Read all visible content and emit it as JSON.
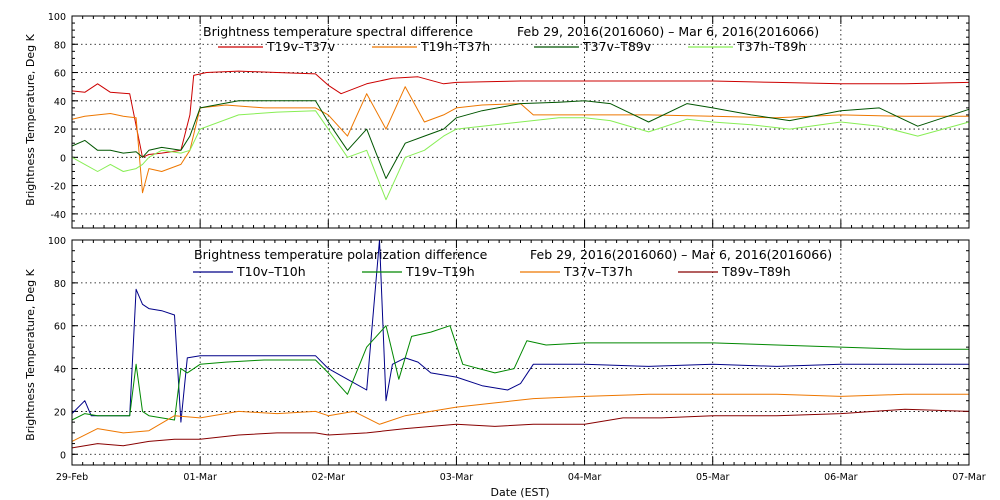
{
  "xlabel": "Date (EST)",
  "x_ticks": [
    "29-Feb",
    "01-Mar",
    "02-Mar",
    "03-Mar",
    "04-Mar",
    "05-Mar",
    "06-Mar",
    "07-Mar"
  ],
  "chart_data": [
    {
      "type": "line",
      "title_left": "Brightness temperature spectral difference",
      "title_right": "Feb 29, 2016(2016060) – Mar  6, 2016(2016066)",
      "ylabel": "Brightness Temperature, Deg K",
      "xlim": [
        0,
        7
      ],
      "ylim": [
        -50,
        100
      ],
      "yticks": [
        -40,
        -20,
        0,
        20,
        40,
        60,
        80,
        100
      ],
      "grid": true,
      "legend_position": "top",
      "series": [
        {
          "name": "T19v–T37v",
          "color": "#cc0000",
          "x": [
            0,
            0.1,
            0.2,
            0.3,
            0.45,
            0.55,
            0.6,
            0.7,
            0.85,
            0.92,
            0.95,
            1.05,
            1.3,
            1.6,
            1.9,
            2.0,
            2.1,
            2.3,
            2.5,
            2.7,
            2.9,
            3.0,
            3.5,
            4.0,
            4.5,
            5.0,
            5.5,
            6.0,
            6.5,
            7.0
          ],
          "y": [
            47,
            46,
            52,
            46,
            45,
            0,
            2,
            3,
            5,
            30,
            58,
            60,
            61,
            60,
            59,
            51,
            45,
            52,
            56,
            57,
            52,
            53,
            54,
            54,
            54,
            54,
            53,
            52,
            52,
            53
          ]
        },
        {
          "name": "T19h–T37h",
          "color": "#ee7700",
          "x": [
            0,
            0.1,
            0.2,
            0.3,
            0.4,
            0.5,
            0.55,
            0.6,
            0.7,
            0.85,
            0.92,
            1.0,
            1.2,
            1.5,
            1.9,
            2.0,
            2.15,
            2.3,
            2.45,
            2.6,
            2.75,
            2.9,
            3.0,
            3.2,
            3.5,
            3.6,
            4.0,
            4.5,
            5.0,
            5.5,
            6.0,
            6.5,
            7.0
          ],
          "y": [
            27,
            29,
            30,
            31,
            29,
            28,
            -25,
            -8,
            -10,
            -5,
            5,
            35,
            37,
            35,
            35,
            30,
            15,
            45,
            20,
            50,
            25,
            30,
            35,
            37,
            38,
            30,
            30,
            30,
            29,
            28,
            30,
            29,
            29
          ]
        },
        {
          "name": "T37v–T89v",
          "color": "#005500",
          "x": [
            0,
            0.1,
            0.2,
            0.3,
            0.4,
            0.5,
            0.55,
            0.6,
            0.7,
            0.85,
            0.92,
            1.0,
            1.3,
            1.6,
            1.9,
            2.0,
            2.15,
            2.3,
            2.45,
            2.6,
            2.75,
            2.9,
            3.0,
            3.2,
            3.5,
            3.8,
            4.0,
            4.2,
            4.5,
            4.8,
            5.0,
            5.3,
            5.6,
            6.0,
            6.3,
            6.6,
            7.0
          ],
          "y": [
            8,
            12,
            5,
            5,
            3,
            4,
            0,
            5,
            7,
            5,
            15,
            35,
            40,
            40,
            40,
            25,
            5,
            20,
            -15,
            10,
            15,
            20,
            28,
            33,
            38,
            39,
            40,
            38,
            25,
            38,
            35,
            30,
            26,
            33,
            35,
            22,
            34
          ]
        },
        {
          "name": "T37h–T89h",
          "color": "#88ee55",
          "x": [
            0,
            0.1,
            0.2,
            0.3,
            0.4,
            0.5,
            0.55,
            0.6,
            0.7,
            0.85,
            0.92,
            1.0,
            1.3,
            1.6,
            1.9,
            2.0,
            2.15,
            2.3,
            2.45,
            2.6,
            2.75,
            2.9,
            3.0,
            3.2,
            3.5,
            3.8,
            4.0,
            4.2,
            4.5,
            4.8,
            5.0,
            5.3,
            5.6,
            6.0,
            6.3,
            6.6,
            7.0
          ],
          "y": [
            0,
            -5,
            -10,
            -5,
            -10,
            -8,
            -5,
            0,
            5,
            3,
            5,
            20,
            30,
            32,
            33,
            20,
            0,
            5,
            -30,
            0,
            5,
            15,
            20,
            22,
            25,
            28,
            28,
            26,
            18,
            27,
            25,
            23,
            20,
            25,
            22,
            15,
            25
          ]
        }
      ]
    },
    {
      "type": "line",
      "title_left": "Brightness temperature polarization difference",
      "title_right": "Feb 29, 2016(2016060) – Mar  6, 2016(2016066)",
      "ylabel": "Brightness Temperature, Deg K",
      "xlim": [
        0,
        7
      ],
      "ylim": [
        -5,
        100
      ],
      "yticks": [
        0,
        20,
        40,
        60,
        80,
        100
      ],
      "grid": true,
      "legend_position": "top",
      "series": [
        {
          "name": "T10v–T10h",
          "color": "#000088",
          "x": [
            0,
            0.1,
            0.15,
            0.2,
            0.3,
            0.45,
            0.5,
            0.55,
            0.6,
            0.7,
            0.8,
            0.85,
            0.9,
            1.0,
            1.2,
            1.5,
            1.9,
            2.0,
            2.15,
            2.3,
            2.4,
            2.45,
            2.5,
            2.6,
            2.7,
            2.8,
            3.0,
            3.2,
            3.4,
            3.5,
            3.6,
            4.0,
            4.5,
            5.0,
            5.5,
            6.0,
            6.5,
            7.0
          ],
          "y": [
            19,
            25,
            18,
            18,
            18,
            18,
            77,
            70,
            68,
            67,
            65,
            15,
            45,
            46,
            46,
            46,
            46,
            40,
            35,
            30,
            100,
            25,
            42,
            45,
            43,
            38,
            36,
            32,
            30,
            33,
            42,
            42,
            41,
            42,
            41,
            42,
            42,
            42
          ]
        },
        {
          "name": "T19v–T19h",
          "color": "#008800",
          "x": [
            0,
            0.1,
            0.2,
            0.3,
            0.45,
            0.5,
            0.55,
            0.6,
            0.7,
            0.8,
            0.85,
            0.9,
            1.0,
            1.2,
            1.5,
            1.9,
            2.0,
            2.15,
            2.3,
            2.45,
            2.55,
            2.65,
            2.8,
            2.95,
            3.05,
            3.3,
            3.45,
            3.55,
            3.7,
            4.0,
            4.5,
            5.0,
            5.5,
            6.0,
            6.5,
            7.0
          ],
          "y": [
            16,
            19,
            18,
            18,
            18,
            42,
            20,
            18,
            17,
            16,
            40,
            38,
            42,
            43,
            44,
            44,
            38,
            28,
            50,
            60,
            35,
            55,
            57,
            60,
            42,
            38,
            40,
            53,
            51,
            52,
            52,
            52,
            51,
            50,
            49,
            49
          ]
        },
        {
          "name": "T37v–T37h",
          "color": "#ee7700",
          "x": [
            0,
            0.2,
            0.4,
            0.6,
            0.8,
            1.0,
            1.3,
            1.6,
            1.9,
            2.0,
            2.2,
            2.4,
            2.6,
            2.8,
            3.0,
            3.3,
            3.6,
            4.0,
            4.5,
            5.0,
            5.5,
            6.0,
            6.5,
            7.0
          ],
          "y": [
            6,
            12,
            10,
            11,
            18,
            17,
            20,
            19,
            20,
            18,
            20,
            14,
            18,
            20,
            22,
            24,
            26,
            27,
            28,
            28,
            28,
            27,
            28,
            28
          ]
        },
        {
          "name": "T89v–T89h",
          "color": "#880000",
          "x": [
            0,
            0.2,
            0.4,
            0.6,
            0.8,
            1.0,
            1.3,
            1.6,
            1.9,
            2.0,
            2.3,
            2.6,
            3.0,
            3.3,
            3.6,
            4.0,
            4.3,
            4.6,
            5.0,
            5.5,
            6.0,
            6.5,
            7.0
          ],
          "y": [
            3,
            5,
            4,
            6,
            7,
            7,
            9,
            10,
            10,
            9,
            10,
            12,
            14,
            13,
            14,
            14,
            17,
            17,
            18,
            18,
            19,
            21,
            20
          ]
        }
      ]
    }
  ]
}
